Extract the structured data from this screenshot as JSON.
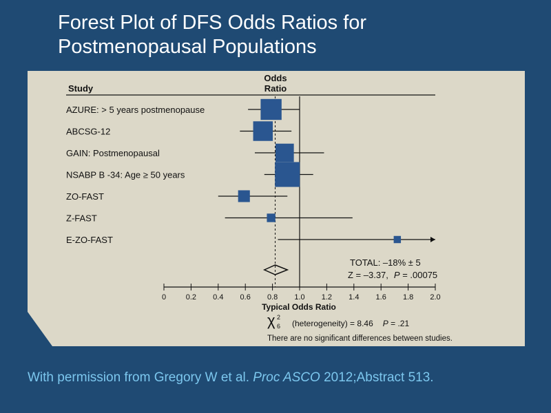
{
  "title_line1": "Forest Plot of DFS Odds Ratios for",
  "title_line2": "Postmenopausal Populations",
  "citation": {
    "prefix": "With permission from Gregory W et al. ",
    "journal": "Proc ASCO",
    "suffix": " 2012;Abstract 513."
  },
  "chart_data": {
    "type": "forest",
    "column_headers": {
      "study": "Study",
      "odds_ratio_line1": "Odds",
      "odds_ratio_line2": "Ratio"
    },
    "xlabel": "Typical Odds Ratio",
    "xlim": [
      0,
      2.0
    ],
    "x_ticks": [
      0,
      0.2,
      0.4,
      0.6,
      0.8,
      1.0,
      1.2,
      1.4,
      1.6,
      1.8,
      2.0
    ],
    "x_tick_labels": [
      "0",
      "0.2",
      "0.4",
      "0.6",
      "0.8",
      "1.0",
      "1.2",
      "1.4",
      "1.6",
      "1.8",
      "2.0"
    ],
    "reference_line": 1.0,
    "pooled_line": 0.82,
    "studies": [
      {
        "name": "AZURE:  > 5 years postmenopause",
        "or": 0.79,
        "ci_low": 0.62,
        "ci_high": 1.0,
        "weight": 32
      },
      {
        "name": "ABCSG-12",
        "or": 0.73,
        "ci_low": 0.56,
        "ci_high": 0.94,
        "weight": 30
      },
      {
        "name": "GAIN:  Postmenopausal",
        "or": 0.89,
        "ci_low": 0.67,
        "ci_high": 1.18,
        "weight": 28
      },
      {
        "name": "NSABP B -34: Age ≥ 50 years",
        "or": 0.91,
        "ci_low": 0.74,
        "ci_high": 1.1,
        "weight": 38
      },
      {
        "name": "ZO-FAST",
        "or": 0.59,
        "ci_low": 0.4,
        "ci_high": 0.91,
        "weight": 18
      },
      {
        "name": "Z-FAST",
        "or": 0.79,
        "ci_low": 0.45,
        "ci_high": 1.39,
        "weight": 13
      },
      {
        "name": "E-ZO-FAST",
        "or": 1.72,
        "ci_low": 0.84,
        "ci_high": 2.0,
        "weight": 11,
        "arrow_right": true
      }
    ],
    "pooled": {
      "or": 0.82,
      "ci_low": 0.74,
      "ci_high": 0.91
    },
    "total_text": "TOTAL:  –18% ±   5",
    "z_text": "Z = –3.37,",
    "p_label": "P",
    "p_value_text": " = .00075",
    "chi_symbol": "χ",
    "chi_sup": "2",
    "chi_sub": "6",
    "heterogeneity_text": "(heterogeneity) = 8.46",
    "heterogeneity_p_value": " = .21",
    "footnote": "There are no significant differences between studies."
  }
}
